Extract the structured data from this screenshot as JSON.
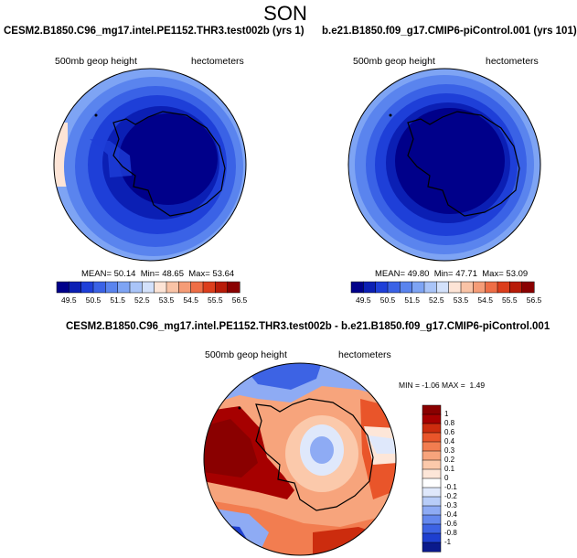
{
  "page_title": "SON",
  "panels": [
    {
      "title": "CESM2.B1850.C96_mg17.intel.PE1152.THR3.test002b (yrs 1)",
      "left_label": "500mb geop height",
      "right_label": "hectometers",
      "stats": {
        "mean_label": "MEAN=",
        "mean": "50.14",
        "min_label": "Min=",
        "min": "48.65",
        "max_label": "Max=",
        "max": "53.64"
      },
      "colorbar_ticks": [
        "49.5",
        "50.5",
        "51.5",
        "52.5",
        "53.5",
        "54.5",
        "55.5",
        "56.5"
      ]
    },
    {
      "title": "b.e21.B1850.f09_g17.CMIP6-piControl.001 (yrs 101)",
      "left_label": "500mb geop height",
      "right_label": "hectometers",
      "stats": {
        "mean_label": "MEAN=",
        "mean": "49.80",
        "min_label": "Min=",
        "min": "47.71",
        "max_label": "Max=",
        "max": "53.09"
      },
      "colorbar_ticks": [
        "49.5",
        "50.5",
        "51.5",
        "52.5",
        "53.5",
        "54.5",
        "55.5",
        "56.5"
      ]
    }
  ],
  "diff_panel": {
    "title": "CESM2.B1850.C96_mg17.intel.PE1152.THR3.test002b - b.e21.B1850.f09_g17.CMIP6-piControl.001",
    "left_label": "500mb geop height",
    "right_label": "hectometers",
    "stats": {
      "min_label": "MIN =",
      "min": "-1.06",
      "max_label": "MAX =",
      "max": "1.49"
    },
    "colorbar_ticks": [
      "1",
      "0.8",
      "0.6",
      "0.4",
      "0.3",
      "0.2",
      "0.1",
      "0",
      "-0.1",
      "-0.2",
      "-0.3",
      "-0.4",
      "-0.6",
      "-0.8",
      "-1"
    ]
  },
  "colors": {
    "abs_scale": [
      "#00008a",
      "#0b1fb4",
      "#1e3fd8",
      "#3a62e6",
      "#5a84ee",
      "#7ea4f4",
      "#a9c4f8",
      "#d3e1fb",
      "#fde4d6",
      "#f9c3a6",
      "#f59c77",
      "#ee6e46",
      "#dc3e1c",
      "#b81b08",
      "#8a0000"
    ],
    "diff_scale": [
      "#0a1a8c",
      "#1e3fd0",
      "#3d63e4",
      "#6488ee",
      "#8eabf4",
      "#b8cdf8",
      "#dfe8fb",
      "#ffffff",
      "#fde6d8",
      "#fbc9ab",
      "#f7a47c",
      "#f27d50",
      "#e9552a",
      "#cc2c0e",
      "#a60000",
      "#8a0000"
    ]
  }
}
